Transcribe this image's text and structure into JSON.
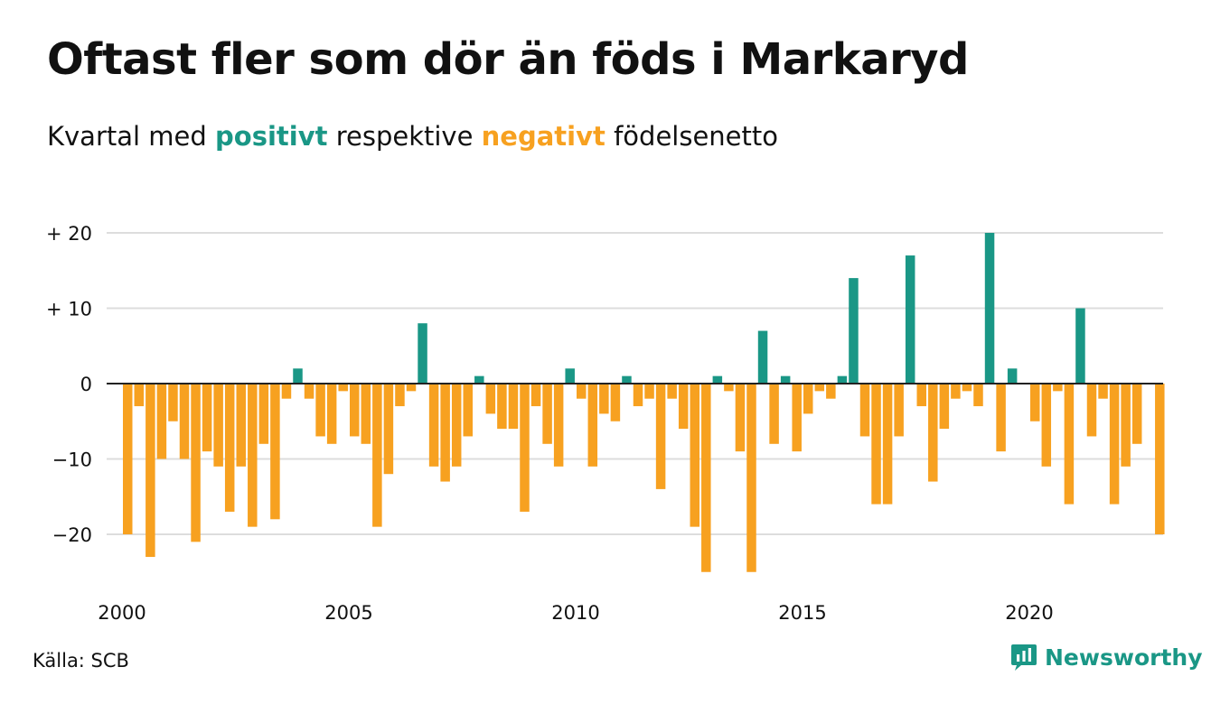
{
  "title": "Oftast fler som dör än föds i Markaryd",
  "subtitle": {
    "prefix": "Kvartal med ",
    "positive_word": "positivt",
    "middle": " respektive ",
    "negative_word": "negativt",
    "suffix": " födelsenetto"
  },
  "source": "Källa: SCB",
  "brand": "Newsworthy",
  "colors": {
    "positive": "#1a9786",
    "negative": "#f7a120",
    "grid": "#dddddd",
    "text": "#111111"
  },
  "chart_data": {
    "type": "bar",
    "x_unit": "quarter",
    "x_start": "2000 Q1",
    "values": [
      -20,
      -3,
      -23,
      -10,
      -5,
      -10,
      -21,
      -9,
      -11,
      -17,
      -11,
      -19,
      -8,
      -18,
      -2,
      2,
      -2,
      -7,
      -8,
      -1,
      -7,
      -8,
      -19,
      -12,
      -3,
      -1,
      8,
      -11,
      -13,
      -11,
      -7,
      1,
      -4,
      -6,
      -6,
      -17,
      -3,
      -8,
      -11,
      2,
      -2,
      -11,
      -4,
      -5,
      1,
      -3,
      -2,
      -14,
      -2,
      -6,
      -19,
      -25,
      1,
      -1,
      -9,
      -25,
      7,
      -8,
      1,
      -9,
      -4,
      -1,
      -2,
      1,
      14,
      -7,
      -16,
      -16,
      -7,
      17,
      -3,
      -13,
      -6,
      -2,
      -1,
      -3,
      20,
      -9,
      2,
      0,
      -5,
      -11,
      -1,
      -16,
      10,
      -7,
      -2,
      -16,
      -11,
      -8,
      0,
      -20
    ],
    "y_ticks": [
      {
        "value": 20,
        "label": "+ 20"
      },
      {
        "value": 10,
        "label": "+ 10"
      },
      {
        "value": 0,
        "label": "0"
      },
      {
        "value": -10,
        "label": "−10"
      },
      {
        "value": -20,
        "label": "−20"
      }
    ],
    "x_ticks": [
      {
        "year": 2000,
        "label": "2000"
      },
      {
        "year": 2005,
        "label": "2005"
      },
      {
        "year": 2010,
        "label": "2010"
      },
      {
        "year": 2015,
        "label": "2015"
      },
      {
        "year": 2020,
        "label": "2020"
      }
    ],
    "ylim": [
      -26,
      20
    ],
    "grid": true,
    "legend": "none (colour key in subtitle)"
  }
}
